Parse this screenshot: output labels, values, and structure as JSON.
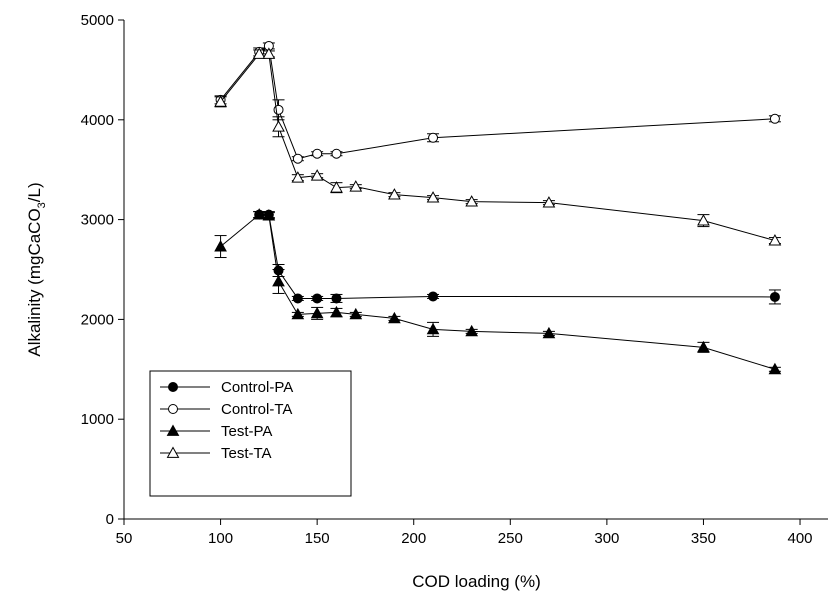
{
  "chart_data": {
    "type": "line",
    "title": "",
    "xlabel": "COD loading (%)",
    "ylabel_parts": [
      "Alkalinity (mgCaCO",
      "3",
      "/L)"
    ],
    "xlim": [
      50,
      415
    ],
    "ylim": [
      0,
      5000
    ],
    "xticks": [
      50,
      100,
      150,
      200,
      250,
      300,
      350,
      400
    ],
    "yticks": [
      0,
      1000,
      2000,
      3000,
      4000,
      5000
    ],
    "grid": false,
    "legend_position": "lower-left",
    "series": [
      {
        "name": "Control-PA",
        "marker": "circle",
        "filled": true,
        "points": [
          {
            "x": 120,
            "y": 3050,
            "err": 30
          },
          {
            "x": 125,
            "y": 3050,
            "err": 30
          },
          {
            "x": 130,
            "y": 2490,
            "err": 60
          },
          {
            "x": 140,
            "y": 2210,
            "err": 20
          },
          {
            "x": 150,
            "y": 2210,
            "err": 20
          },
          {
            "x": 160,
            "y": 2210,
            "err": 40
          },
          {
            "x": 210,
            "y": 2230,
            "err": 20
          },
          {
            "x": 387,
            "y": 2225,
            "err": 70
          }
        ]
      },
      {
        "name": "Control-TA",
        "marker": "circle",
        "filled": false,
        "points": [
          {
            "x": 100,
            "y": 4200,
            "err": 40
          },
          {
            "x": 120,
            "y": 4680,
            "err": 40
          },
          {
            "x": 125,
            "y": 4740,
            "err": 30
          },
          {
            "x": 130,
            "y": 4100,
            "err": 100
          },
          {
            "x": 140,
            "y": 3610,
            "err": 20
          },
          {
            "x": 150,
            "y": 3660,
            "err": 20
          },
          {
            "x": 160,
            "y": 3660,
            "err": 20
          },
          {
            "x": 210,
            "y": 3820,
            "err": 40
          },
          {
            "x": 387,
            "y": 4010,
            "err": 30
          }
        ]
      },
      {
        "name": "Test-PA",
        "marker": "triangle",
        "filled": true,
        "points": [
          {
            "x": 100,
            "y": 2730,
            "err": 110
          },
          {
            "x": 120,
            "y": 3050,
            "err": 30
          },
          {
            "x": 125,
            "y": 3040,
            "err": 30
          },
          {
            "x": 130,
            "y": 2380,
            "err": 120
          },
          {
            "x": 140,
            "y": 2050,
            "err": 20
          },
          {
            "x": 150,
            "y": 2060,
            "err": 60
          },
          {
            "x": 160,
            "y": 2070,
            "err": 40
          },
          {
            "x": 170,
            "y": 2050,
            "err": 20
          },
          {
            "x": 190,
            "y": 2010,
            "err": 20
          },
          {
            "x": 210,
            "y": 1900,
            "err": 70
          },
          {
            "x": 230,
            "y": 1880,
            "err": 20
          },
          {
            "x": 270,
            "y": 1860,
            "err": 20
          },
          {
            "x": 350,
            "y": 1720,
            "err": 50
          },
          {
            "x": 387,
            "y": 1500,
            "err": 20
          }
        ]
      },
      {
        "name": "Test-TA",
        "marker": "triangle",
        "filled": false,
        "points": [
          {
            "x": 100,
            "y": 4180,
            "err": 50
          },
          {
            "x": 120,
            "y": 4660,
            "err": 40
          },
          {
            "x": 125,
            "y": 4660,
            "err": 30
          },
          {
            "x": 130,
            "y": 3930,
            "err": 100
          },
          {
            "x": 140,
            "y": 3420,
            "err": 30
          },
          {
            "x": 150,
            "y": 3440,
            "err": 20
          },
          {
            "x": 160,
            "y": 3320,
            "err": 50
          },
          {
            "x": 170,
            "y": 3330,
            "err": 20
          },
          {
            "x": 190,
            "y": 3250,
            "err": 20
          },
          {
            "x": 210,
            "y": 3220,
            "err": 20
          },
          {
            "x": 230,
            "y": 3180,
            "err": 20
          },
          {
            "x": 270,
            "y": 3170,
            "err": 20
          },
          {
            "x": 350,
            "y": 2990,
            "err": 60
          },
          {
            "x": 387,
            "y": 2790,
            "err": 30
          }
        ]
      }
    ]
  }
}
